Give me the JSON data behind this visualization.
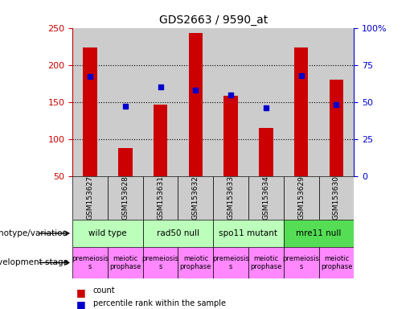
{
  "title": "GDS2663 / 9590_at",
  "samples": [
    "GSM153627",
    "GSM153628",
    "GSM153631",
    "GSM153632",
    "GSM153633",
    "GSM153634",
    "GSM153629",
    "GSM153630"
  ],
  "counts": [
    224,
    88,
    146,
    243,
    158,
    115,
    224,
    180
  ],
  "percentile_ranks": [
    67,
    47,
    60,
    58,
    55,
    46,
    68,
    48
  ],
  "ylim_left": [
    50,
    250
  ],
  "ylim_right": [
    0,
    100
  ],
  "yticks_left": [
    50,
    100,
    150,
    200,
    250
  ],
  "ytick_labels_right": [
    "0",
    "25",
    "50",
    "75",
    "100%"
  ],
  "yticks_right": [
    0,
    25,
    50,
    75,
    100
  ],
  "bar_color": "#cc0000",
  "dot_color": "#0000cc",
  "tick_color_left": "#cc0000",
  "tick_color_right": "#0000cc",
  "sample_area_color": "#cccccc",
  "bar_width": 0.4,
  "genotype_groups": [
    {
      "label": "wild type",
      "start": 0,
      "end": 2,
      "color": "#bbffbb"
    },
    {
      "label": "rad50 null",
      "start": 2,
      "end": 4,
      "color": "#bbffbb"
    },
    {
      "label": "spo11 mutant",
      "start": 4,
      "end": 6,
      "color": "#bbffbb"
    },
    {
      "label": "mre11 null",
      "start": 6,
      "end": 8,
      "color": "#55dd55"
    }
  ],
  "dev_stage_labels": [
    "premeiosis\ns",
    "meiotic\nprophase",
    "premeiosis\ns",
    "meiotic\nprophase",
    "premeiosis\ns",
    "meiotic\nprophase",
    "premeiosis\ns",
    "meiotic\nprophase"
  ],
  "dev_stage_color": "#ff88ff",
  "left_label_genotype": "genotype/variation",
  "left_label_devstage": "development stage",
  "legend_count_label": "count",
  "legend_pct_label": "percentile rank within the sample"
}
